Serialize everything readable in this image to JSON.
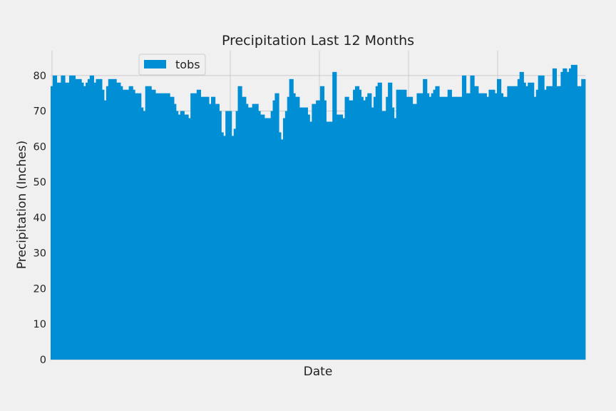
{
  "chart_data": {
    "type": "bar",
    "title": "Precipitation Last 12 Months",
    "xlabel": "Date",
    "ylabel": "Precipitation (Inches)",
    "ylim": [
      0,
      87
    ],
    "yticks": [
      0,
      10,
      20,
      30,
      40,
      50,
      60,
      70,
      80
    ],
    "grid": true,
    "legend_position": "top-left",
    "series": [
      {
        "name": "tobs",
        "color": "#008fd5",
        "values": [
          77,
          80,
          80,
          78,
          78,
          80,
          80,
          78,
          78,
          80,
          80,
          80,
          79,
          79,
          79,
          78,
          77,
          78,
          79,
          80,
          80,
          78,
          79,
          79,
          79,
          76,
          73,
          77,
          79,
          79,
          79,
          79,
          78,
          78,
          77,
          76,
          76,
          76,
          77,
          77,
          76,
          75,
          75,
          75,
          71,
          70,
          77,
          77,
          77,
          76,
          76,
          75,
          75,
          75,
          75,
          75,
          75,
          75,
          74,
          74,
          72,
          70,
          69,
          70,
          70,
          69,
          69,
          68,
          75,
          75,
          75,
          76,
          76,
          74,
          74,
          74,
          74,
          72,
          74,
          74,
          72,
          72,
          70,
          64,
          63,
          70,
          70,
          70,
          63,
          65,
          70,
          77,
          77,
          74,
          74,
          72,
          71,
          71,
          72,
          72,
          72,
          70,
          69,
          69,
          68,
          68,
          68,
          70,
          73,
          75,
          75,
          64,
          62,
          68,
          70,
          74,
          79,
          79,
          75,
          74,
          74,
          71,
          71,
          71,
          71,
          69,
          67,
          72,
          72,
          73,
          73,
          77,
          77,
          73,
          67,
          67,
          67,
          81,
          81,
          69,
          69,
          69,
          68,
          74,
          74,
          73,
          73,
          76,
          77,
          77,
          76,
          74,
          73,
          74,
          75,
          75,
          71,
          74,
          77,
          78,
          78,
          70,
          70,
          74,
          78,
          78,
          71,
          68,
          76,
          76,
          76,
          76,
          76,
          74,
          74,
          74,
          72,
          72,
          75,
          75,
          75,
          79,
          79,
          75,
          74,
          75,
          76,
          77,
          77,
          74,
          74,
          74,
          74,
          76,
          76,
          74,
          74,
          74,
          74,
          74,
          80,
          80,
          75,
          75,
          80,
          80,
          77,
          77,
          75,
          75,
          75,
          75,
          74,
          76,
          76,
          76,
          75,
          79,
          79,
          75,
          74,
          74,
          77,
          77,
          77,
          77,
          77,
          79,
          81,
          81,
          78,
          77,
          78,
          78,
          78,
          74,
          76,
          80,
          80,
          80,
          76,
          77,
          77,
          77,
          82,
          82,
          77,
          77,
          81,
          82,
          82,
          81,
          82,
          83,
          83,
          83,
          77,
          77,
          79,
          79
        ]
      }
    ]
  }
}
